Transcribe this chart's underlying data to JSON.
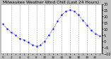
{
  "title": "Milwaukee Weather Wind Chill (Last 24 Hours)",
  "bg_color": "#c0c0c0",
  "plot_bg_color": "#ffffff",
  "line_color": "#0000ff",
  "marker_color": "#0000ff",
  "grid_color": "#888888",
  "text_color": "#000000",
  "title_color": "#000000",
  "hours": [
    0,
    1,
    2,
    3,
    4,
    5,
    6,
    7,
    8,
    9,
    10,
    11,
    12,
    13,
    14,
    15,
    16,
    17,
    18,
    19,
    20,
    21,
    22,
    23
  ],
  "values": [
    14,
    10,
    7,
    5,
    2,
    1,
    -1,
    -3,
    -4,
    -3,
    0,
    5,
    10,
    16,
    21,
    24,
    25,
    24,
    21,
    17,
    13,
    9,
    6,
    4
  ],
  "ylim_min": -10,
  "ylim_max": 30,
  "yticks": [
    -10,
    -5,
    0,
    5,
    10,
    15,
    20,
    25,
    30
  ],
  "ylabel_fontsize": 3.5,
  "xlabel_fontsize": 3.0,
  "title_fontsize": 4.2,
  "grid_vlines": [
    2,
    4,
    6,
    8,
    10,
    12,
    14,
    16,
    18,
    20,
    22
  ],
  "tick_hours": [
    0,
    1,
    2,
    3,
    4,
    5,
    6,
    7,
    8,
    9,
    10,
    11,
    12,
    13,
    14,
    15,
    16,
    17,
    18,
    19,
    20,
    21,
    22,
    23
  ],
  "tick_labels": [
    "0",
    "",
    "2",
    "",
    "4",
    "",
    "6",
    "",
    "8",
    "",
    "10",
    "",
    "12",
    "",
    "14",
    "",
    "16",
    "",
    "18",
    "",
    "20",
    "",
    "22",
    ""
  ]
}
